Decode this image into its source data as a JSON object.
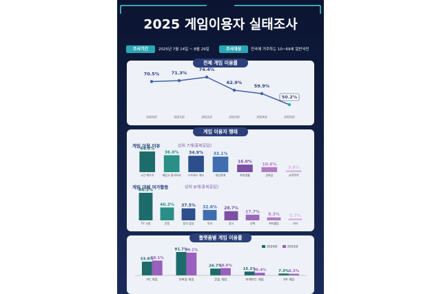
{
  "header": {
    "title": "2025 게임이용자 실태조사",
    "period_label": "조사기간",
    "period": "2025년 7월 14일 ~ 8월 29일",
    "target_label": "조사대상",
    "target": "전국에 거주하는 10~69세 일반국민"
  },
  "behavior_title": "게임 이용자 행태",
  "chart_data": [
    {
      "type": "line",
      "title": "전체 게임 이용률",
      "categories": [
        "2020년",
        "2021년",
        "2022년",
        "2023년",
        "2024년",
        "2025년"
      ],
      "values": [
        70.5,
        71.3,
        74.4,
        62.9,
        59.9,
        50.2
      ],
      "value_labels": [
        "70.5%",
        "71.3%",
        "74.4%",
        "62.9%",
        "59.9%",
        "50.2%"
      ],
      "color": "#3f5fa8"
    },
    {
      "type": "bar",
      "title": "게임 이용 이유",
      "subtitle": "상위 7개(중복응답)",
      "categories": [
        "시간 때우기",
        "재밌고 즐거워서",
        "스트레스 해소",
        "대인관계",
        "취미생활",
        "성취감",
        "교육목적"
      ],
      "values": [
        44.0,
        36.0,
        34.9,
        33.1,
        16.0,
        10.6,
        3.8
      ],
      "value_labels": [
        "44.0%",
        "36.0%",
        "34.9%",
        "33.1%",
        "16.0%",
        "10.6%",
        "3.8%"
      ],
      "colors": [
        "#1d6b6a",
        "#2a8f86",
        "#2c4f8c",
        "#3f6db0",
        "#7b4fa3",
        "#b07cc6",
        "#d6b5e4"
      ]
    },
    {
      "type": "bar",
      "title": "게임 대체 여가활동",
      "subtitle": "상위 8개(중복응답)",
      "categories": [
        "TV 시청",
        "운동",
        "음악 감상",
        "독서",
        "휴식",
        "산책",
        "취미활동",
        "기타"
      ],
      "values": [
        86.3,
        40.3,
        37.5,
        32.6,
        28.7,
        17.7,
        9.3,
        5.7
      ],
      "value_labels": [
        "86.3%",
        "40.3%",
        "37.5%",
        "32.6%",
        "28.7%",
        "17.7%",
        "9.3%",
        "5.7%"
      ],
      "colors": [
        "#1d6b6a",
        "#2a8f86",
        "#2c4f8c",
        "#3f6db0",
        "#7b4fa3",
        "#9a68b8",
        "#b07cc6",
        "#d6b5e4"
      ]
    },
    {
      "type": "grouped_bar",
      "title": "플랫폼별 게임 이용률",
      "categories": [
        "PC 게임",
        "모바일 게임",
        "콘솔 게임",
        "아케이드 게임",
        "VR 게임"
      ],
      "series": [
        {
          "name": "2024년",
          "color": "#1d6b6a",
          "values": [
            53.8,
            91.7,
            26.7,
            15.1,
            7.3
          ],
          "value_labels": [
            "53.8%",
            "91.7%",
            "26.7%",
            "15.1%",
            "7.3%"
          ]
        },
        {
          "name": "2025년",
          "color": "#9a5fbf",
          "values": [
            58.1,
            89.1,
            28.6,
            10.4,
            6.3
          ],
          "value_labels": [
            "58.1%",
            "89.1%",
            "28.6%",
            "10.4%",
            "6.3%"
          ]
        }
      ]
    }
  ]
}
